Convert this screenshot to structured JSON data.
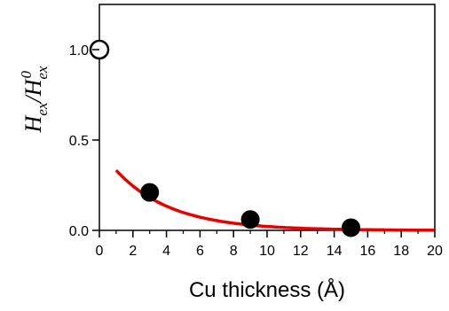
{
  "chart_data": {
    "type": "scatter",
    "xlabel": "Cu thickness (Å)",
    "ylabel": {
      "main": "H",
      "sub": "ex",
      "slash": "/",
      "main2": "H",
      "sub2": "ex",
      "sup2": "0"
    },
    "xlim": [
      0,
      20
    ],
    "ylim": [
      0,
      1.25
    ],
    "x_ticks": [
      "0",
      "2",
      "4",
      "6",
      "8",
      "10",
      "12",
      "14",
      "16",
      "18",
      "20"
    ],
    "y_ticks": [
      "0.0",
      "0.5",
      "1.0"
    ],
    "grid": false,
    "legend": "none",
    "series": [
      {
        "kind": "points",
        "marker": "open-circle",
        "color": "#000000",
        "x": [
          0
        ],
        "y": [
          1.0
        ]
      },
      {
        "kind": "points",
        "marker": "filled-circle",
        "color": "#000000",
        "x": [
          3,
          9,
          15
        ],
        "y": [
          0.21,
          0.06,
          0.015
        ]
      },
      {
        "kind": "fit-line",
        "color": "#e60000",
        "x_range": [
          1,
          20
        ],
        "model": "exponential",
        "amplitude": 0.45,
        "decay_length": 3.3
      }
    ]
  }
}
